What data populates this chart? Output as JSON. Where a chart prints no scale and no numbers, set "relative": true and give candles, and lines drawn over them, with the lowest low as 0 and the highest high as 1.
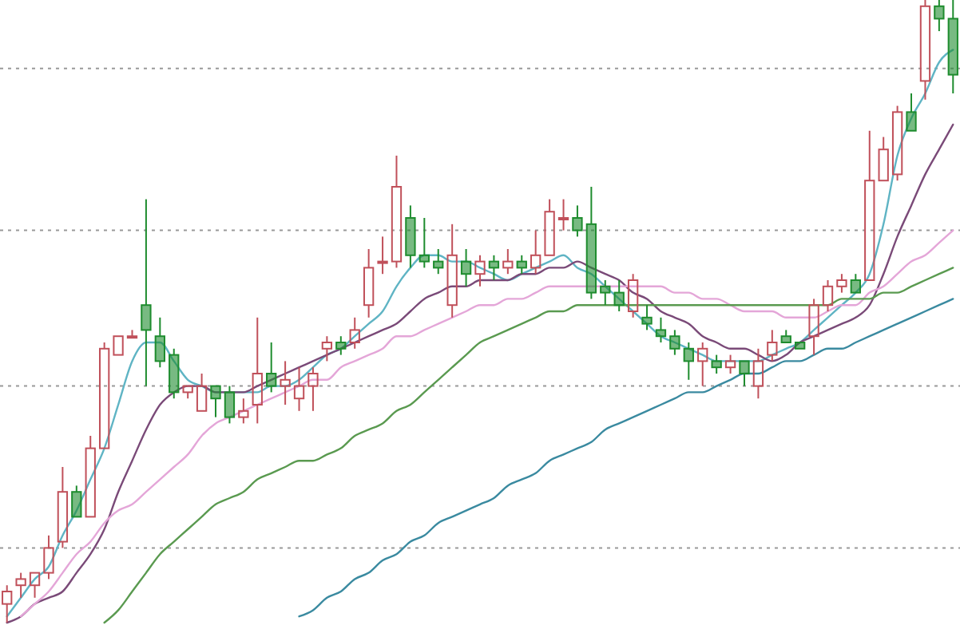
{
  "chart_data": {
    "type": "candlestick",
    "relative": true,
    "categories": [
      null,
      null,
      null,
      null,
      null,
      null,
      null,
      null,
      null,
      null,
      null,
      null,
      null,
      null,
      null,
      null,
      null,
      null,
      null,
      null,
      null,
      null,
      null,
      null,
      null,
      null,
      null,
      null,
      null,
      null,
      null,
      null,
      null,
      null,
      null,
      null,
      null,
      null,
      null,
      null,
      null,
      null,
      null,
      null,
      null,
      null,
      null,
      null,
      null,
      null,
      null,
      null,
      null,
      null,
      null,
      null,
      null,
      null,
      null,
      null,
      null,
      null,
      null,
      null,
      null,
      null,
      null,
      null,
      null
    ],
    "ohlc": [
      [
        0.03,
        0.06,
        0,
        0.05
      ],
      [
        0.06,
        0.08,
        0.04,
        0.07
      ],
      [
        0.06,
        0.08,
        0.04,
        0.08
      ],
      [
        0.08,
        0.14,
        0.07,
        0.12
      ],
      [
        0.13,
        0.25,
        0.12,
        0.21
      ],
      [
        0.21,
        0.22,
        0.17,
        0.17
      ],
      [
        0.17,
        0.3,
        0.17,
        0.28
      ],
      [
        0.28,
        0.45,
        0.28,
        0.44
      ],
      [
        0.43,
        0.46,
        0.43,
        0.46
      ],
      [
        0.46,
        0.47,
        0.46,
        0.46
      ],
      [
        0.51,
        0.68,
        0.38,
        0.47
      ],
      [
        0.46,
        0.49,
        0.41,
        0.42
      ],
      [
        0.43,
        0.44,
        0.36,
        0.37
      ],
      [
        0.37,
        0.38,
        0.36,
        0.38
      ],
      [
        0.34,
        0.4,
        0.34,
        0.38
      ],
      [
        0.38,
        0.38,
        0.33,
        0.36
      ],
      [
        0.37,
        0.38,
        0.32,
        0.33
      ],
      [
        0.33,
        0.36,
        0.32,
        0.34
      ],
      [
        0.35,
        0.49,
        0.32,
        0.4
      ],
      [
        0.4,
        0.45,
        0.37,
        0.38
      ],
      [
        0.38,
        0.42,
        0.35,
        0.39
      ],
      [
        0.36,
        0.41,
        0.34,
        0.38
      ],
      [
        0.38,
        0.41,
        0.34,
        0.4
      ],
      [
        0.44,
        0.46,
        0.42,
        0.45
      ],
      [
        0.45,
        0.46,
        0.43,
        0.44
      ],
      [
        0.45,
        0.49,
        0.44,
        0.47
      ],
      [
        0.51,
        0.6,
        0.49,
        0.57
      ],
      [
        0.58,
        0.62,
        0.56,
        0.58
      ],
      [
        0.58,
        0.75,
        0.57,
        0.7
      ],
      [
        0.65,
        0.67,
        0.57,
        0.59
      ],
      [
        0.59,
        0.65,
        0.57,
        0.58
      ],
      [
        0.58,
        0.6,
        0.56,
        0.57
      ],
      [
        0.51,
        0.64,
        0.49,
        0.59
      ],
      [
        0.58,
        0.6,
        0.54,
        0.56
      ],
      [
        0.56,
        0.59,
        0.54,
        0.58
      ],
      [
        0.58,
        0.59,
        0.55,
        0.57
      ],
      [
        0.57,
        0.6,
        0.56,
        0.58
      ],
      [
        0.58,
        0.59,
        0.56,
        0.57
      ],
      [
        0.57,
        0.63,
        0.56,
        0.59
      ],
      [
        0.59,
        0.68,
        0.59,
        0.66
      ],
      [
        0.65,
        0.68,
        0.63,
        0.65
      ],
      [
        0.65,
        0.67,
        0.62,
        0.63
      ],
      [
        0.64,
        0.7,
        0.52,
        0.53
      ],
      [
        0.54,
        0.55,
        0.51,
        0.53
      ],
      [
        0.53,
        0.55,
        0.5,
        0.51
      ],
      [
        0.5,
        0.56,
        0.49,
        0.55
      ],
      [
        0.49,
        0.51,
        0.47,
        0.48
      ],
      [
        0.47,
        0.49,
        0.45,
        0.46
      ],
      [
        0.46,
        0.47,
        0.43,
        0.44
      ],
      [
        0.44,
        0.45,
        0.39,
        0.42
      ],
      [
        0.42,
        0.45,
        0.38,
        0.44
      ],
      [
        0.42,
        0.43,
        0.4,
        0.41
      ],
      [
        0.41,
        0.43,
        0.4,
        0.42
      ],
      [
        0.42,
        0.42,
        0.38,
        0.4
      ],
      [
        0.38,
        0.44,
        0.36,
        0.42
      ],
      [
        0.43,
        0.47,
        0.42,
        0.45
      ],
      [
        0.46,
        0.47,
        0.45,
        0.45
      ],
      [
        0.45,
        0.45,
        0.44,
        0.44
      ],
      [
        0.46,
        0.52,
        0.43,
        0.51
      ],
      [
        0.51,
        0.55,
        0.5,
        0.54
      ],
      [
        0.54,
        0.56,
        0.53,
        0.55
      ],
      [
        0.55,
        0.56,
        0.53,
        0.53
      ],
      [
        0.55,
        0.79,
        0.55,
        0.71
      ],
      [
        0.71,
        0.78,
        0.71,
        0.76
      ],
      [
        0.72,
        0.83,
        0.71,
        0.82
      ],
      [
        0.82,
        0.85,
        0.79,
        0.79
      ],
      [
        0.87,
        1,
        0.84,
        0.99
      ],
      [
        0.99,
        1,
        0.95,
        0.97
      ],
      [
        0.97,
        1,
        0.85,
        0.88
      ]
    ],
    "series": [
      {
        "type": "line",
        "color": "#5fb4c4",
        "values": [
          0.01,
          0.04,
          0.07,
          0.09,
          0.14,
          0.18,
          0.23,
          0.28,
          0.35,
          0.42,
          0.45,
          0.45,
          0.42,
          0.39,
          0.38,
          0.37,
          0.37,
          0.37,
          0.37,
          0.38,
          0.38,
          0.39,
          0.41,
          0.43,
          0.44,
          0.46,
          0.48,
          0.5,
          0.54,
          0.57,
          0.59,
          0.59,
          0.58,
          0.58,
          0.57,
          0.56,
          0.55,
          0.56,
          0.57,
          0.58,
          0.59,
          0.57,
          0.56,
          0.54,
          0.52,
          0.5,
          0.48,
          0.46,
          0.45,
          0.44,
          0.43,
          0.42,
          0.42,
          0.42,
          0.42,
          0.43,
          0.44,
          0.45,
          0.47,
          0.49,
          0.51,
          0.53,
          0.56,
          0.64,
          0.75,
          0.81,
          0.85,
          0.9,
          0.92
        ]
      },
      {
        "type": "line",
        "color": "#7a4a78",
        "values": [
          0,
          0.01,
          0.03,
          0.04,
          0.05,
          0.08,
          0.11,
          0.15,
          0.21,
          0.26,
          0.31,
          0.35,
          0.37,
          0.38,
          0.38,
          0.37,
          0.37,
          0.37,
          0.38,
          0.39,
          0.4,
          0.41,
          0.42,
          0.43,
          0.44,
          0.45,
          0.46,
          0.47,
          0.48,
          0.5,
          0.52,
          0.53,
          0.54,
          0.54,
          0.55,
          0.55,
          0.55,
          0.56,
          0.56,
          0.57,
          0.57,
          0.58,
          0.57,
          0.56,
          0.55,
          0.53,
          0.52,
          0.5,
          0.49,
          0.48,
          0.46,
          0.45,
          0.44,
          0.44,
          0.43,
          0.42,
          0.43,
          0.45,
          0.46,
          0.47,
          0.48,
          0.49,
          0.51,
          0.56,
          0.62,
          0.67,
          0.72,
          0.76,
          0.8
        ]
      },
      {
        "type": "line",
        "color": "#e4a6d8",
        "values": [
          null,
          0.01,
          0.03,
          0.05,
          0.08,
          0.11,
          0.13,
          0.16,
          0.18,
          0.19,
          0.21,
          0.23,
          0.25,
          0.27,
          0.3,
          0.32,
          0.33,
          0.34,
          0.35,
          0.36,
          0.37,
          0.38,
          0.39,
          0.39,
          0.41,
          0.42,
          0.43,
          0.44,
          0.46,
          0.46,
          0.47,
          0.48,
          0.49,
          0.5,
          0.51,
          0.51,
          0.52,
          0.52,
          0.53,
          0.54,
          0.54,
          0.54,
          0.54,
          0.54,
          0.54,
          0.54,
          0.54,
          0.54,
          0.53,
          0.53,
          0.52,
          0.52,
          0.51,
          0.5,
          0.5,
          0.5,
          0.49,
          0.49,
          0.49,
          0.5,
          0.51,
          0.51,
          0.53,
          0.54,
          0.56,
          0.58,
          0.59,
          0.61,
          0.63
        ]
      },
      {
        "type": "line",
        "color": "#5a9a50",
        "values": [
          null,
          null,
          null,
          null,
          null,
          null,
          null,
          0,
          0.02,
          0.05,
          0.08,
          0.11,
          0.13,
          0.15,
          0.17,
          0.19,
          0.2,
          0.21,
          0.23,
          0.24,
          0.25,
          0.26,
          0.26,
          0.27,
          0.28,
          0.3,
          0.31,
          0.32,
          0.34,
          0.35,
          0.37,
          0.39,
          0.41,
          0.43,
          0.45,
          0.46,
          0.47,
          0.48,
          0.49,
          0.5,
          0.5,
          0.51,
          0.51,
          0.51,
          0.51,
          0.51,
          0.51,
          0.51,
          0.51,
          0.51,
          0.51,
          0.51,
          0.51,
          0.51,
          0.51,
          0.51,
          0.51,
          0.51,
          0.51,
          0.51,
          0.52,
          0.52,
          0.52,
          0.53,
          0.53,
          0.54,
          0.55,
          0.56,
          0.57
        ]
      },
      {
        "type": "line",
        "color": "#3a8aa0",
        "values": [
          null,
          null,
          null,
          null,
          null,
          null,
          null,
          null,
          null,
          null,
          null,
          null,
          null,
          null,
          null,
          null,
          null,
          null,
          null,
          null,
          null,
          0.01,
          0.02,
          0.04,
          0.05,
          0.07,
          0.08,
          0.1,
          0.11,
          0.13,
          0.14,
          0.16,
          0.17,
          0.18,
          0.19,
          0.2,
          0.22,
          0.23,
          0.24,
          0.26,
          0.27,
          0.28,
          0.29,
          0.31,
          0.32,
          0.33,
          0.34,
          0.35,
          0.36,
          0.37,
          0.37,
          0.38,
          0.39,
          0.4,
          0.4,
          0.41,
          0.42,
          0.42,
          0.43,
          0.44,
          0.44,
          0.45,
          0.46,
          0.47,
          0.48,
          0.49,
          0.5,
          0.51,
          0.52
        ]
      }
    ],
    "ref_lines": [
      {
        "axis": "y",
        "value": 0.89,
        "color": "#999999",
        "line_style": "dotted"
      },
      {
        "axis": "y",
        "value": 0.63,
        "color": "#999999",
        "line_style": "dotted"
      },
      {
        "axis": "y",
        "value": 0.38,
        "color": "#999999",
        "line_style": "dotted"
      },
      {
        "axis": "y",
        "value": 0.12,
        "color": "#999999",
        "line_style": "dotted"
      }
    ]
  }
}
